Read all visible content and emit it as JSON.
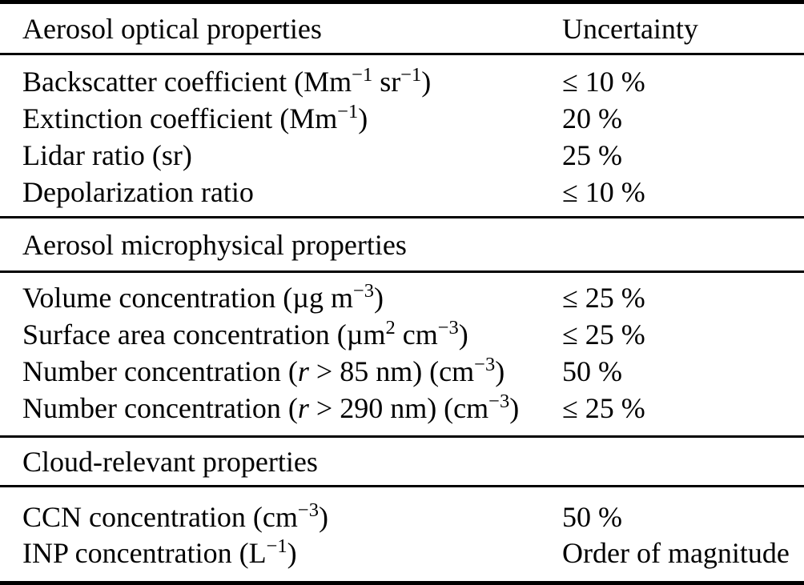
{
  "page": {
    "background": "#ffffff",
    "text_color": "#000000",
    "rule_color": "#000000"
  },
  "table": {
    "header": {
      "property_header": "Aerosol optical properties",
      "uncertainty_header": "Uncertainty"
    },
    "sections": [
      {
        "rows": [
          {
            "label": [
              {
                "t": "Backscatter coefficient (Mm"
              },
              {
                "sup": "−1"
              },
              {
                "t": " sr"
              },
              {
                "sup": "−1"
              },
              {
                "t": ")"
              }
            ],
            "uncertainty": "≤ 10 %"
          },
          {
            "label": [
              {
                "t": "Extinction coefficient (Mm"
              },
              {
                "sup": "−1"
              },
              {
                "t": ")"
              }
            ],
            "uncertainty": "20 %"
          },
          {
            "label": [
              {
                "t": "Lidar ratio (sr)"
              }
            ],
            "uncertainty": "25 %"
          },
          {
            "label": [
              {
                "t": "Depolarization ratio"
              }
            ],
            "uncertainty": "≤ 10 %"
          }
        ]
      },
      {
        "title": "Aerosol microphysical properties",
        "rows": [
          {
            "label": [
              {
                "t": "Volume concentration (µg m"
              },
              {
                "sup": "−3"
              },
              {
                "t": ")"
              }
            ],
            "uncertainty": "≤ 25 %"
          },
          {
            "label": [
              {
                "t": "Surface area concentration (µm"
              },
              {
                "sup": "2"
              },
              {
                "t": " cm"
              },
              {
                "sup": "−3"
              },
              {
                "t": ")"
              }
            ],
            "uncertainty": "≤ 25 %"
          },
          {
            "label": [
              {
                "t": "Number concentration ("
              },
              {
                "i": "r"
              },
              {
                "t": " > 85 nm) (cm"
              },
              {
                "sup": "−3"
              },
              {
                "t": ")"
              }
            ],
            "uncertainty": "50 %"
          },
          {
            "label": [
              {
                "t": "Number concentration ("
              },
              {
                "i": "r"
              },
              {
                "t": " > 290 nm) (cm"
              },
              {
                "sup": "−3"
              },
              {
                "t": ")"
              }
            ],
            "uncertainty": "≤ 25 %"
          }
        ]
      },
      {
        "title": "Cloud-relevant properties",
        "rows": [
          {
            "label": [
              {
                "t": "CCN concentration (cm"
              },
              {
                "sup": "−3"
              },
              {
                "t": ")"
              }
            ],
            "uncertainty": "50 %"
          },
          {
            "label": [
              {
                "t": "INP concentration (L"
              },
              {
                "sup": "−1"
              },
              {
                "t": ")"
              }
            ],
            "uncertainty": "Order of magnitude"
          }
        ]
      }
    ]
  }
}
